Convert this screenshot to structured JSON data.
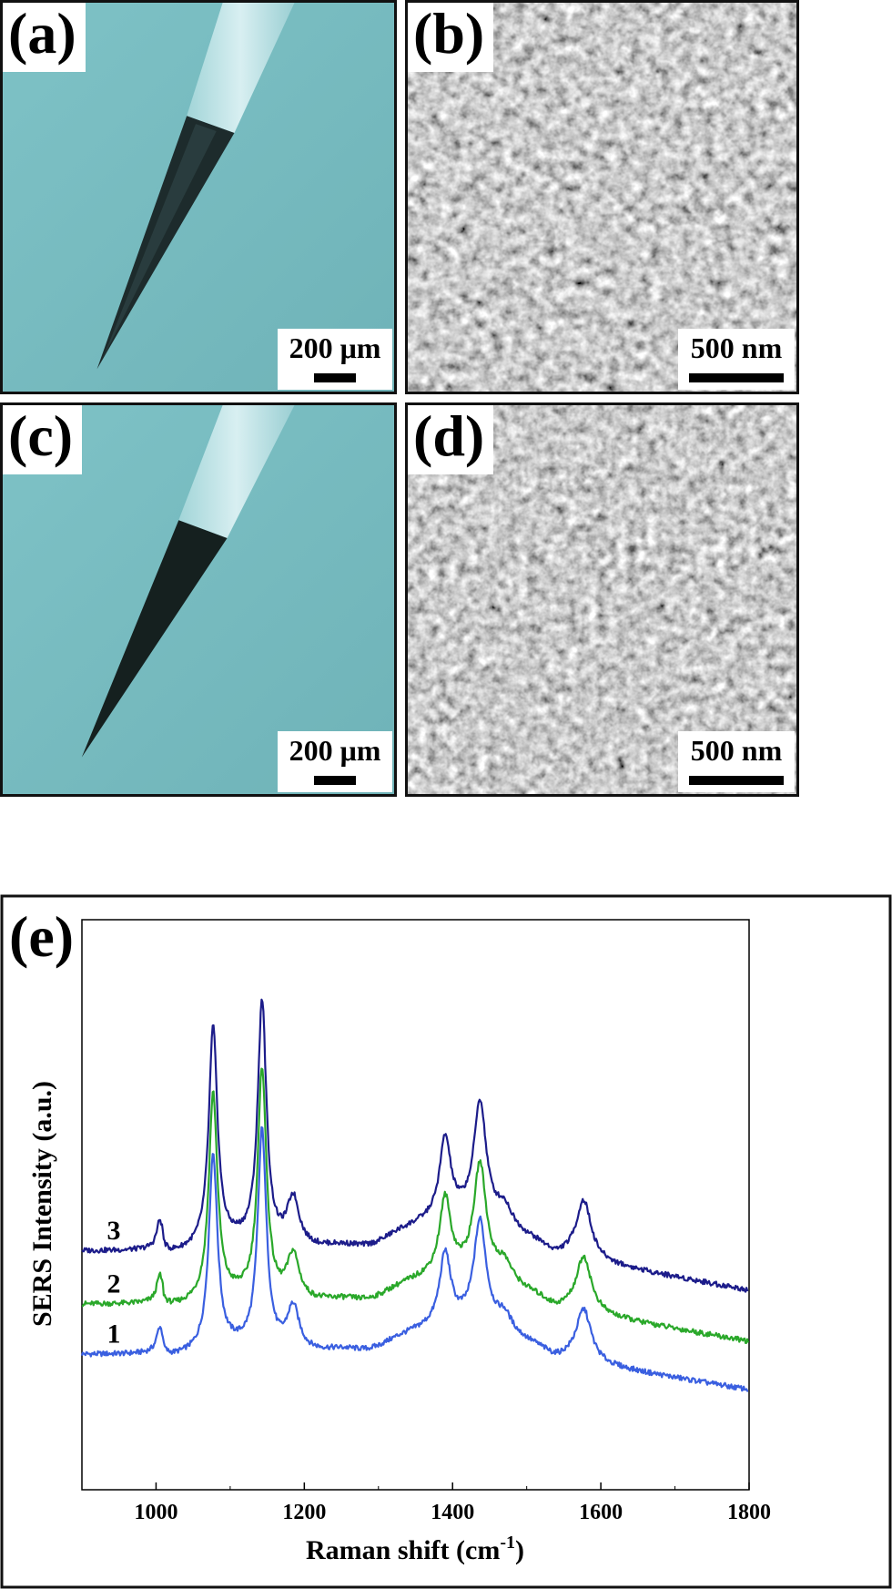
{
  "panels": {
    "a": {
      "label": "(a)",
      "scale": "200 μm"
    },
    "b": {
      "label": "(b)",
      "scale": "500 nm"
    },
    "c": {
      "label": "(c)",
      "scale": "200 μm"
    },
    "d": {
      "label": "(d)",
      "scale": "500 nm"
    },
    "e": {
      "label": "(e)"
    }
  },
  "colors": {
    "optical_bg": "#79bcc0",
    "sem_bg": "#8a8a8a",
    "series_1": "#3a5fe0",
    "series_2": "#2aa82a",
    "series_3": "#1c1c8a"
  },
  "chart_data": {
    "type": "line",
    "title": "",
    "xlabel": "Raman shift (cm",
    "xlabel_sup": "-1",
    "xlabel_close": ")",
    "ylabel": "SERS Intensity (a.u.)",
    "xlim": [
      900,
      1800
    ],
    "ylim": [
      0,
      100
    ],
    "xticks": [
      1000,
      1200,
      1400,
      1600,
      1800
    ],
    "ytick_labels": false,
    "grid": false,
    "peaks": [
      {
        "x": 1005,
        "h": 4.5,
        "w": 5
      },
      {
        "x": 1077,
        "h": 36,
        "w": 7
      },
      {
        "x": 1143,
        "h": 40,
        "w": 7
      },
      {
        "x": 1185,
        "h": 8,
        "w": 10
      },
      {
        "x": 1390,
        "h": 13,
        "w": 9
      },
      {
        "x": 1437,
        "h": 19,
        "w": 10
      },
      {
        "x": 1470,
        "h": 3,
        "w": 12
      },
      {
        "x": 1577,
        "h": 9.5,
        "w": 12
      }
    ],
    "series": [
      {
        "name": "1",
        "offset": 36,
        "scale": 0.95,
        "color_key": "series_1"
      },
      {
        "name": "2",
        "offset": 44.5,
        "scale": 1.0,
        "color_key": "series_2"
      },
      {
        "name": "3",
        "offset": 53.5,
        "scale": 1.06,
        "color_key": "series_3"
      }
    ]
  }
}
